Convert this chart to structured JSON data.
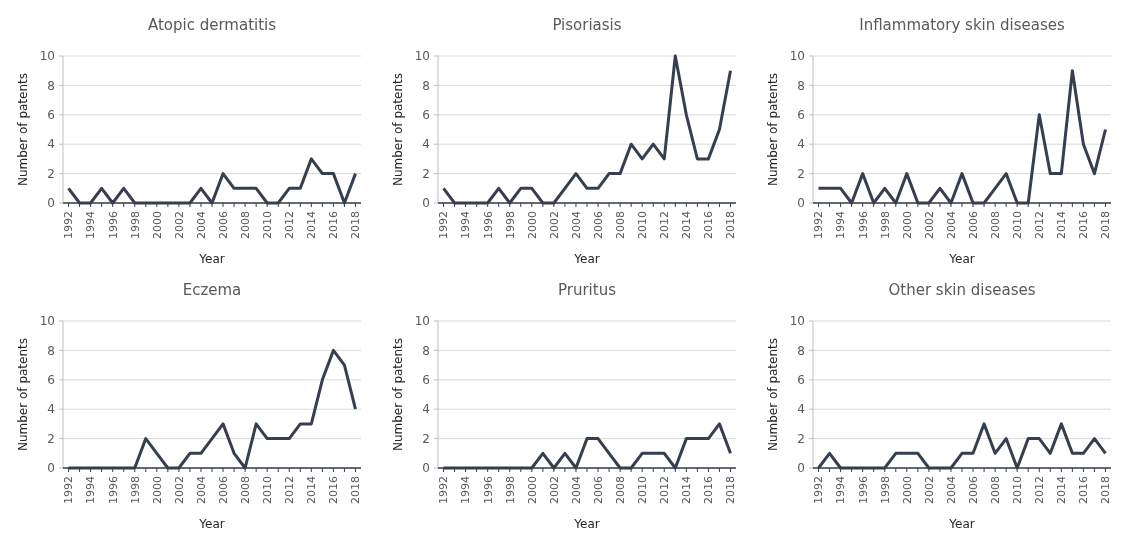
{
  "chart_data": [
    {
      "type": "line",
      "title": "Atopic dermatitis",
      "xlabel": "Year",
      "ylabel": "Number of patents",
      "categories": [
        "1992",
        null,
        "1994",
        null,
        "1996",
        null,
        "1998",
        null,
        "2000",
        null,
        "2002",
        null,
        "2004",
        null,
        "2006",
        null,
        "2008",
        null,
        "2010",
        null,
        "2012",
        null,
        "2014",
        null,
        "2016",
        null,
        "2018"
      ],
      "values": [
        1,
        0,
        0,
        1,
        0,
        1,
        0,
        0,
        0,
        0,
        0,
        0,
        1,
        0,
        2,
        1,
        1,
        1,
        0,
        0,
        1,
        1,
        3,
        2,
        2,
        0,
        2
      ],
      "color": "#353f4f",
      "ylim": [
        0,
        10
      ],
      "yticks": [
        0,
        2,
        4,
        6,
        8,
        10
      ],
      "grid": "y"
    },
    {
      "type": "line",
      "title": "Pisoriasis",
      "xlabel": "Year",
      "ylabel": "Number of patents",
      "categories": [
        "1992",
        null,
        "1994",
        null,
        "1996",
        null,
        "1998",
        null,
        "2000",
        null,
        "2002",
        null,
        "2004",
        null,
        "2006",
        null,
        "2008",
        null,
        "2010",
        null,
        "2012",
        null,
        "2014",
        null,
        "2016",
        null,
        "2018"
      ],
      "values": [
        1,
        0,
        0,
        0,
        0,
        1,
        0,
        1,
        1,
        0,
        0,
        1,
        2,
        1,
        1,
        2,
        2,
        4,
        3,
        4,
        3,
        10,
        6,
        3,
        3,
        5,
        9
      ],
      "color": "#353f4f",
      "ylim": [
        0,
        10
      ],
      "yticks": [
        0,
        2,
        4,
        6,
        8,
        10
      ],
      "grid": "y"
    },
    {
      "type": "line",
      "title": "Inflammatory skin diseases",
      "xlabel": "Year",
      "ylabel": "Number of patents",
      "categories": [
        "1992",
        null,
        "1994",
        null,
        "1996",
        null,
        "1998",
        null,
        "2000",
        null,
        "2002",
        null,
        "2004",
        null,
        "2006",
        null,
        "2008",
        null,
        "2010",
        null,
        "2012",
        null,
        "2014",
        null,
        "2016",
        null,
        "2018"
      ],
      "values": [
        1,
        1,
        1,
        0,
        2,
        0,
        1,
        0,
        2,
        0,
        0,
        1,
        0,
        2,
        0,
        0,
        1,
        2,
        0,
        0,
        6,
        2,
        2,
        9,
        4,
        2,
        5
      ],
      "color": "#353f4f",
      "ylim": [
        0,
        10
      ],
      "yticks": [
        0,
        2,
        4,
        6,
        8,
        10
      ],
      "grid": "y"
    },
    {
      "type": "line",
      "title": "Eczema",
      "xlabel": "Year",
      "ylabel": "Number of patents",
      "categories": [
        "1992",
        null,
        "1994",
        null,
        "1996",
        null,
        "1998",
        null,
        "2000",
        null,
        "2002",
        null,
        "2004",
        null,
        "2006",
        null,
        "2008",
        null,
        "2010",
        null,
        "2012",
        null,
        "2014",
        null,
        "2016",
        null,
        "2018"
      ],
      "values": [
        0,
        0,
        0,
        0,
        0,
        0,
        0,
        2,
        1,
        0,
        0,
        1,
        1,
        2,
        3,
        1,
        0,
        3,
        2,
        2,
        2,
        3,
        3,
        6,
        8,
        7,
        4
      ],
      "color": "#353f4f",
      "ylim": [
        0,
        10
      ],
      "yticks": [
        0,
        2,
        4,
        6,
        8,
        10
      ],
      "grid": "y"
    },
    {
      "type": "line",
      "title": "Pruritus",
      "xlabel": "Year",
      "ylabel": "Number of patents",
      "categories": [
        "1992",
        null,
        "1994",
        null,
        "1996",
        null,
        "1998",
        null,
        "2000",
        null,
        "2002",
        null,
        "2004",
        null,
        "2006",
        null,
        "2008",
        null,
        "2010",
        null,
        "2012",
        null,
        "2014",
        null,
        "2016",
        null,
        "2018"
      ],
      "values": [
        0,
        0,
        0,
        0,
        0,
        0,
        0,
        0,
        0,
        1,
        0,
        1,
        0,
        2,
        2,
        1,
        0,
        0,
        1,
        1,
        1,
        0,
        2,
        2,
        2,
        3,
        1
      ],
      "color": "#353f4f",
      "ylim": [
        0,
        10
      ],
      "yticks": [
        0,
        2,
        4,
        6,
        8,
        10
      ],
      "grid": "y"
    },
    {
      "type": "line",
      "title": "Other skin diseases",
      "xlabel": "Year",
      "ylabel": "Number of patents",
      "categories": [
        "1992",
        null,
        "1994",
        null,
        "1996",
        null,
        "1998",
        null,
        "2000",
        null,
        "2002",
        null,
        "2004",
        null,
        "2006",
        null,
        "2008",
        null,
        "2010",
        null,
        "2012",
        null,
        "2014",
        null,
        "2016",
        null,
        "2018"
      ],
      "values": [
        0,
        1,
        0,
        0,
        0,
        0,
        0,
        1,
        1,
        1,
        0,
        0,
        0,
        1,
        1,
        3,
        1,
        2,
        0,
        2,
        2,
        1,
        3,
        1,
        1,
        2,
        1
      ],
      "color": "#353f4f",
      "ylim": [
        0,
        10
      ],
      "yticks": [
        0,
        2,
        4,
        6,
        8,
        10
      ],
      "grid": "y"
    }
  ]
}
